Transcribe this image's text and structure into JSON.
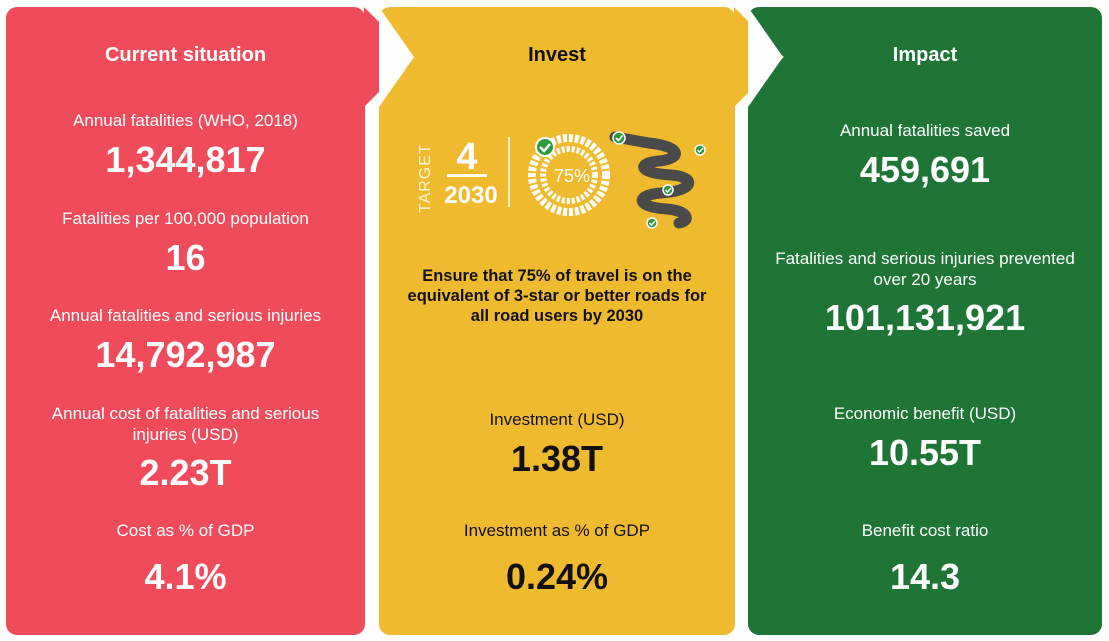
{
  "current": {
    "title": "Current situation",
    "stats": [
      {
        "label": "Annual fatalities (WHO, 2018)",
        "value": "1,344,817"
      },
      {
        "label": "Fatalities per 100,000 population",
        "value": "16"
      },
      {
        "label": "Annual fatalities and serious injuries",
        "value": "14,792,987"
      },
      {
        "label": "Annual cost of fatalities and serious injuries (USD)",
        "value": "2.23T"
      },
      {
        "label": "Cost as % of GDP",
        "value": "4.1%"
      }
    ]
  },
  "invest": {
    "title": "Invest",
    "graphic": {
      "target_word": "TARGET",
      "target_number": "4",
      "target_year": "2030",
      "percent": "75%"
    },
    "target_statement": "Ensure that 75% of travel is on the equivalent of 3-star or better roads for all road users by 2030",
    "stats": [
      {
        "label": "Investment (USD)",
        "value": "1.38T"
      },
      {
        "label": "Investment as % of GDP",
        "value": "0.24%"
      }
    ]
  },
  "impact": {
    "title": "Impact",
    "stats": [
      {
        "label": "Annual fatalities saved",
        "value": "459,691"
      },
      {
        "label": "Fatalities and serious injuries prevented over 20 years",
        "value": "101,131,921"
      },
      {
        "label": "Economic benefit (USD)",
        "value": "10.55T"
      },
      {
        "label": "Benefit cost ratio",
        "value": "14.3"
      }
    ]
  },
  "colors": {
    "current_bg": "#ef4b5b",
    "invest_bg": "#f0ba2f",
    "impact_bg": "#1e7535",
    "check_green": "#2e9a3e"
  }
}
